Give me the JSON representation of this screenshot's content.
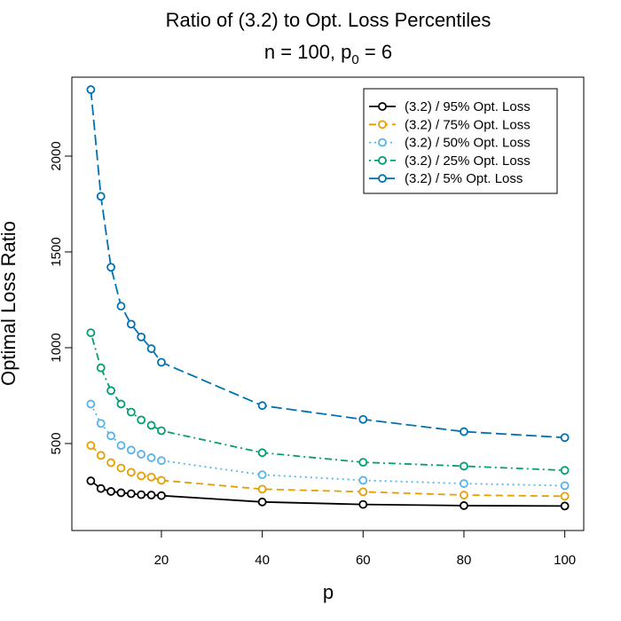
{
  "chart_data": {
    "type": "line",
    "title": "Ratio of (3.2) to Opt. Loss Percentiles",
    "subtitle": [
      "n = 100, p",
      "0",
      " = 6"
    ],
    "xlabel": "p",
    "ylabel": "Optimal Loss Ratio",
    "x": [
      6,
      8,
      10,
      12,
      14,
      16,
      18,
      20,
      40,
      60,
      80,
      100
    ],
    "xlim": [
      2.24,
      103.76
    ],
    "xticks": [
      20,
      40,
      60,
      80,
      100
    ],
    "ylim": [
      46,
      2412
    ],
    "yticks": [
      500,
      1000,
      1500,
      2000
    ],
    "legend": "top-right",
    "series": [
      {
        "name": "(3.2) / 95% Opt. Loss",
        "color": "#000000",
        "dash": "solid",
        "values": [
          305,
          265,
          250,
          243,
          238,
          233,
          231,
          228,
          195,
          182,
          176,
          174
        ]
      },
      {
        "name": "(3.2) / 75% Opt. Loss",
        "color": "#E69F00",
        "dash": "dashed",
        "values": [
          490,
          438,
          400,
          372,
          350,
          331,
          325,
          308,
          262,
          248,
          231,
          225
        ]
      },
      {
        "name": "(3.2) / 50% Opt. Loss",
        "color": "#56B4E9",
        "dash": "dotted",
        "values": [
          706,
          605,
          540,
          490,
          466,
          444,
          426,
          411,
          337,
          308,
          291,
          280
        ]
      },
      {
        "name": "(3.2) / 25% Opt. Loss",
        "color": "#009E73",
        "dash": "dotdash",
        "values": [
          1078,
          895,
          776,
          706,
          664,
          623,
          595,
          567,
          452,
          402,
          382,
          360
        ]
      },
      {
        "name": "(3.2) / 5% Opt. Loss",
        "color": "#0072B2",
        "dash": "longdash",
        "values": [
          2347,
          1790,
          1420,
          1217,
          1123,
          1056,
          995,
          924,
          698,
          626,
          562,
          531
        ]
      }
    ]
  }
}
